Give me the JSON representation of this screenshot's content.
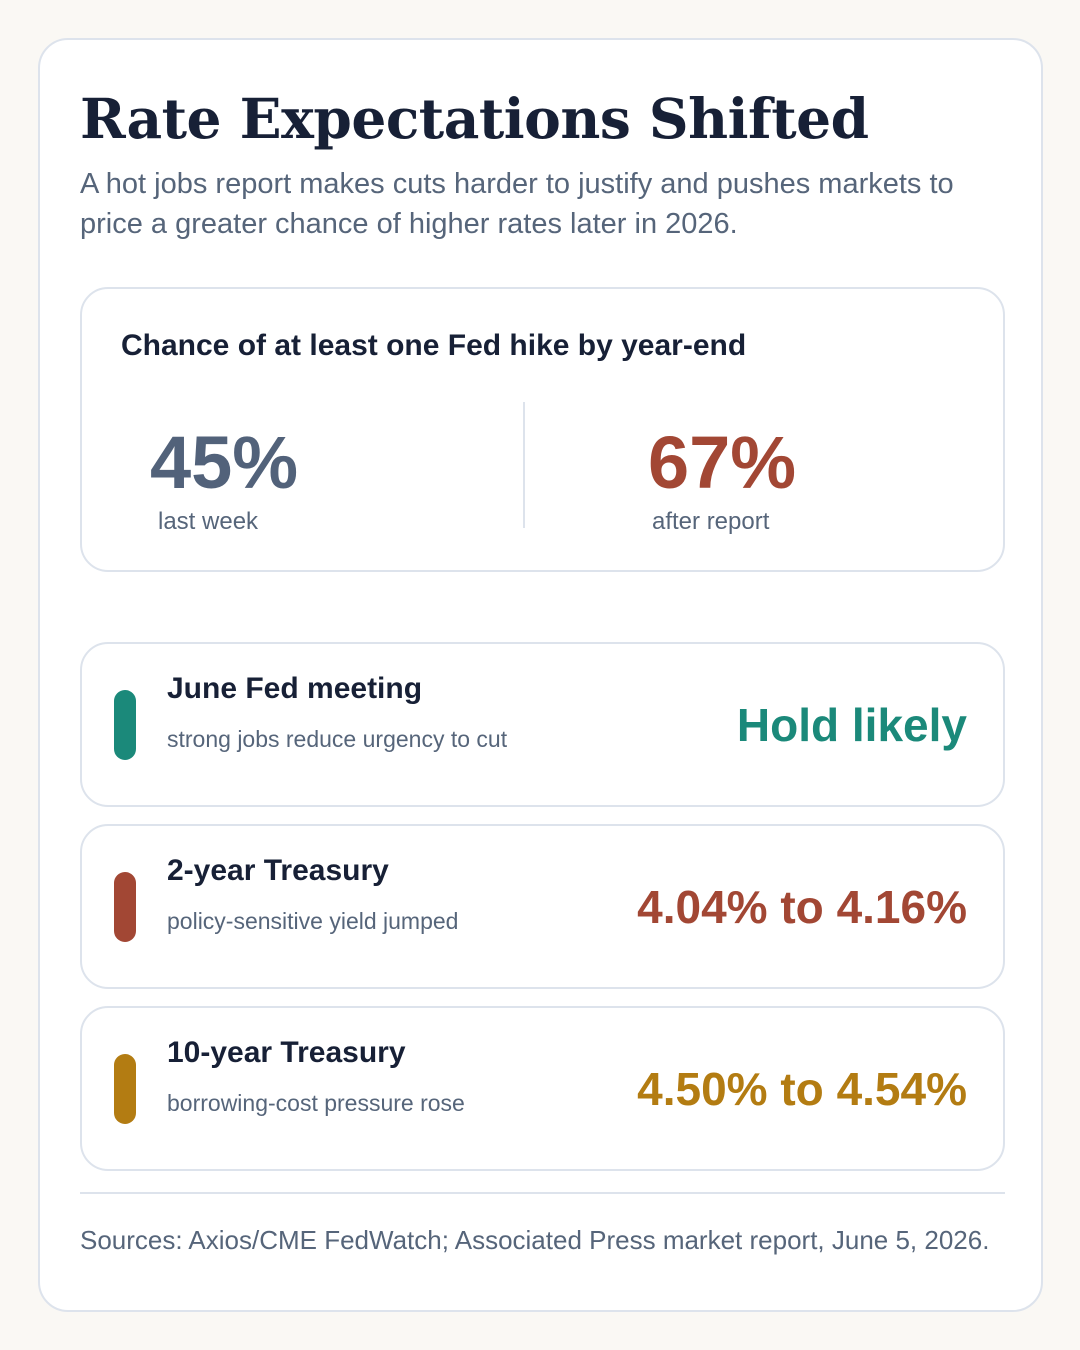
{
  "header": {
    "title": "Rate Expectations Shifted",
    "subtitle": "A hot jobs report makes cuts harder to justify and pushes markets to price a greater chance of higher rates later in 2026."
  },
  "hike_probability": {
    "title": "Chance of at least one Fed hike by year-end",
    "before": {
      "value": "45%",
      "label": "last week",
      "color": "#52627a"
    },
    "after": {
      "value": "67%",
      "label": "after report",
      "color": "#a24734"
    }
  },
  "rows": [
    {
      "title": "June Fed meeting",
      "subtitle": "strong jobs reduce urgency to cut",
      "value": "Hold likely",
      "color": "#1b897a"
    },
    {
      "title": "2-year Treasury",
      "subtitle": "policy-sensitive yield jumped",
      "value": "4.04% to 4.16%",
      "color": "#a24734"
    },
    {
      "title": "10-year Treasury",
      "subtitle": "borrowing-cost pressure rose",
      "value": "4.50% to 4.54%",
      "color": "#b37c12"
    }
  ],
  "footer": {
    "sources": "Sources: Axios/CME FedWatch; Associated Press market report, June 5, 2026."
  }
}
